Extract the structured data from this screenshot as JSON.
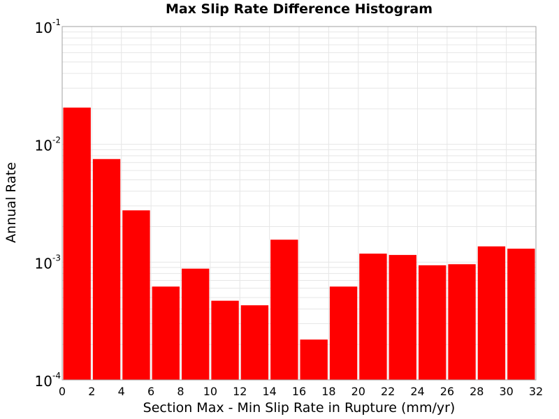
{
  "chart_data": {
    "type": "bar",
    "title": "Max Slip Rate Difference Histogram",
    "xlabel": "Section Max - Min Slip Rate in Rupture (mm/yr)",
    "ylabel": "Annual Rate",
    "y_scale": "log",
    "xlim": [
      0,
      32
    ],
    "ylim": [
      0.0001,
      0.1
    ],
    "x_ticks": [
      "0",
      "2",
      "4",
      "6",
      "8",
      "10",
      "12",
      "14",
      "16",
      "18",
      "20",
      "22",
      "24",
      "26",
      "28",
      "30",
      "32"
    ],
    "y_ticks": [
      {
        "base": "10",
        "exp": "-4"
      },
      {
        "base": "10",
        "exp": "-3"
      },
      {
        "base": "10",
        "exp": "-2"
      },
      {
        "base": "10",
        "exp": "-1"
      }
    ],
    "bin_width": 2,
    "bins": [
      {
        "x0": 0,
        "x1": 2,
        "value": 0.0205
      },
      {
        "x0": 2,
        "x1": 4,
        "value": 0.0075
      },
      {
        "x0": 4,
        "x1": 6,
        "value": 0.00275
      },
      {
        "x0": 6,
        "x1": 8,
        "value": 0.00062
      },
      {
        "x0": 8,
        "x1": 10,
        "value": 0.00088
      },
      {
        "x0": 10,
        "x1": 12,
        "value": 0.00047
      },
      {
        "x0": 12,
        "x1": 14,
        "value": 0.00043
      },
      {
        "x0": 14,
        "x1": 16,
        "value": 0.00155
      },
      {
        "x0": 16,
        "x1": 18,
        "value": 0.00022
      },
      {
        "x0": 18,
        "x1": 20,
        "value": 0.00062
      },
      {
        "x0": 20,
        "x1": 22,
        "value": 0.00118
      },
      {
        "x0": 22,
        "x1": 24,
        "value": 0.00115
      },
      {
        "x0": 24,
        "x1": 26,
        "value": 0.00094
      },
      {
        "x0": 26,
        "x1": 28,
        "value": 0.00096
      },
      {
        "x0": 28,
        "x1": 30,
        "value": 0.00136
      },
      {
        "x0": 30,
        "x1": 32,
        "value": 0.0013
      }
    ],
    "bar_color": "#ff0000",
    "grid": true,
    "grid_color": "#e6e6e6",
    "legend": "none"
  }
}
